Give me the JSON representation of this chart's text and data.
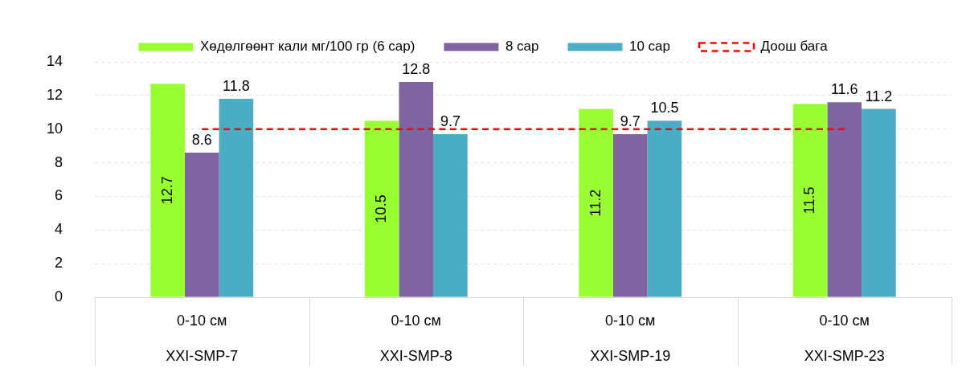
{
  "chart_data": {
    "type": "bar",
    "categories": [
      "0-10 см\nXXI-SMP-7",
      "0-10 см\nXXI-SMP-8",
      "0-10 см\nXXI-SMP-19",
      "0-10 см\nXXI-SMP-23"
    ],
    "series": [
      {
        "name": "Хөдөлгөөнт кали мг/100 гр (6 сар)",
        "color": "#99ff33",
        "values": [
          12.7,
          10.5,
          11.2,
          11.5
        ],
        "value_labels": [
          "12.7",
          "10.5",
          "11.2",
          "11.5"
        ]
      },
      {
        "name": "8 сар",
        "color": "#8064a2",
        "values": [
          8.6,
          12.8,
          9.7,
          11.6
        ],
        "value_labels": [
          "8.6",
          "12.8",
          "9.7",
          "11.6"
        ]
      },
      {
        "name": "10 сар",
        "color": "#4bacc6",
        "values": [
          11.8,
          9.7,
          10.5,
          11.2
        ],
        "value_labels": [
          "11.8",
          "9.7",
          "10.5",
          "11.2"
        ]
      },
      {
        "name": "Доош бага",
        "type": "line",
        "color": "#ff0000",
        "values": [
          10,
          10,
          10,
          10
        ],
        "line_style": "dashed",
        "marker": "none"
      }
    ],
    "ylim": [
      0,
      14
    ],
    "yticks": [
      0,
      2,
      4,
      6,
      8,
      10,
      12,
      14
    ],
    "grid": "y",
    "legend": "top"
  }
}
